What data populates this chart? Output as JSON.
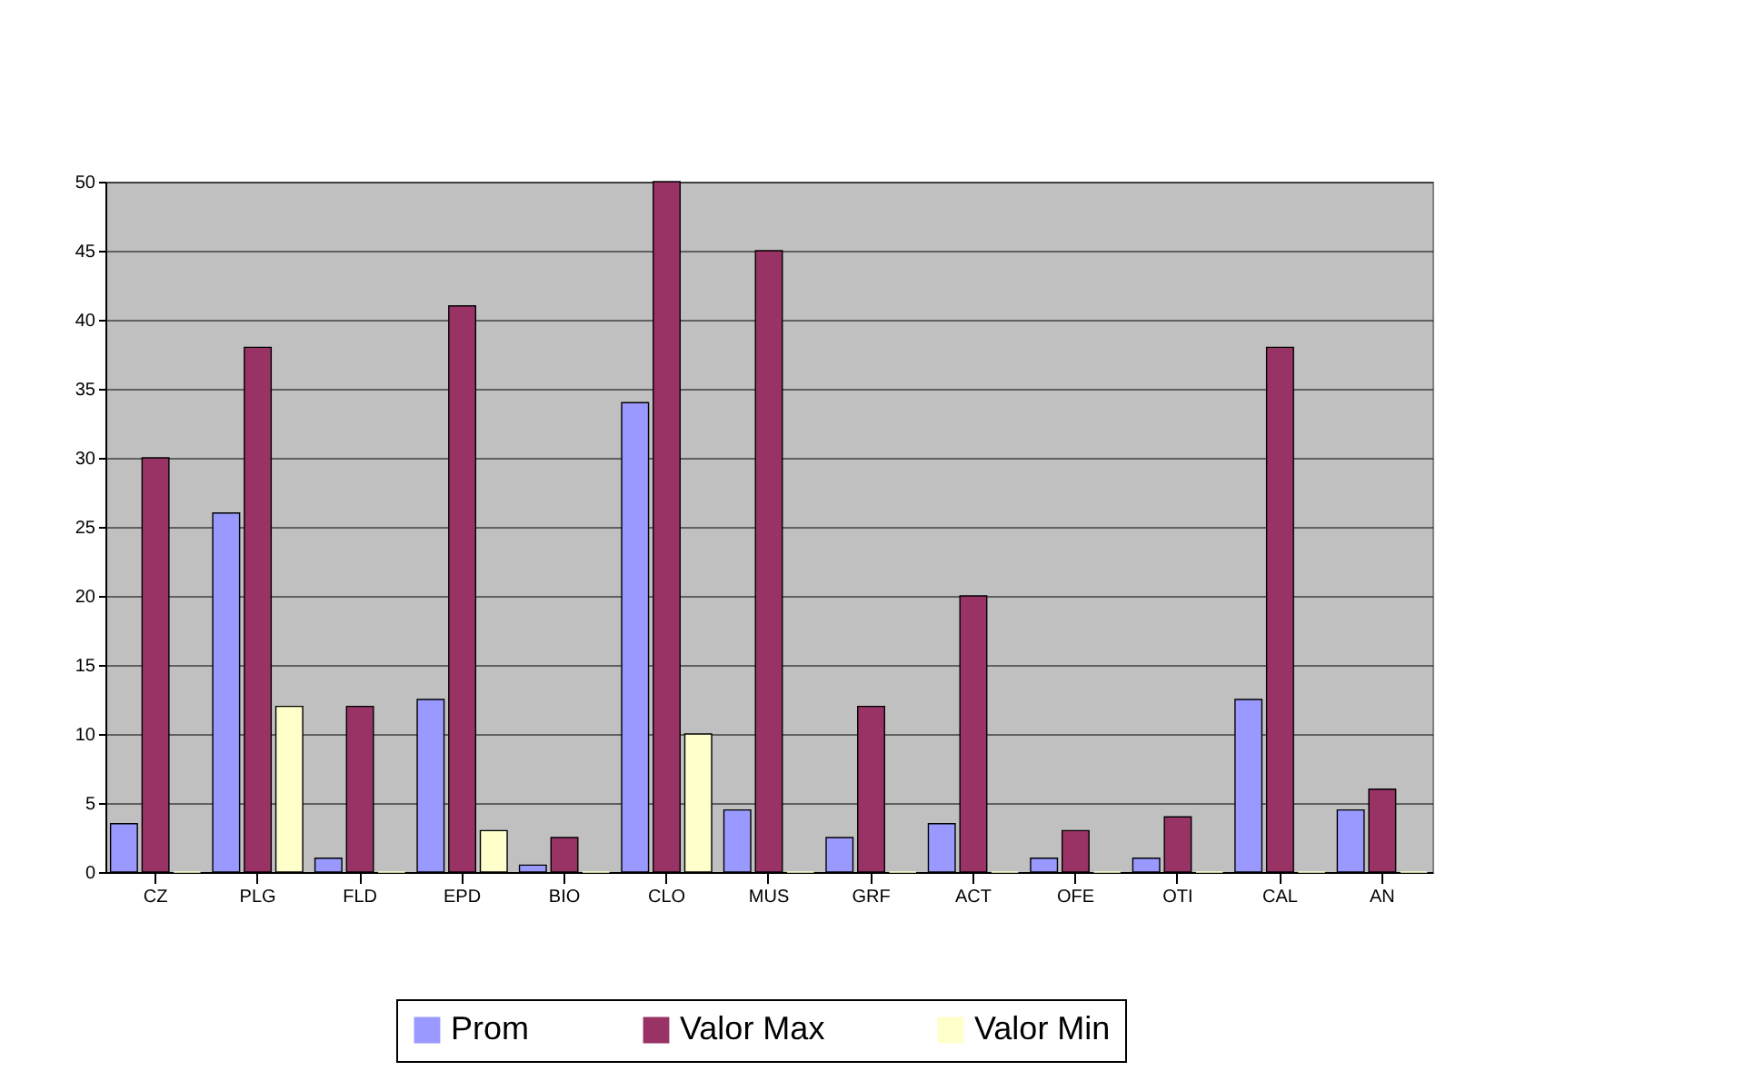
{
  "chart_data": {
    "type": "bar",
    "categories": [
      "CZ",
      "PLG",
      "FLD",
      "EPD",
      "BIO",
      "CLO",
      "MUS",
      "GRF",
      "ACT",
      "OFE",
      "OTI",
      "CAL",
      "AN"
    ],
    "series": [
      {
        "name": "Prom",
        "color": "#9999ff",
        "values": [
          3.5,
          26,
          1,
          12.5,
          0.5,
          34,
          4.5,
          2.5,
          3.5,
          1,
          1,
          12.5,
          4.5
        ]
      },
      {
        "name": "Valor Max",
        "color": "#993366",
        "values": [
          30,
          38,
          12,
          41,
          2.5,
          50,
          45,
          12,
          20,
          3,
          4,
          38,
          6
        ]
      },
      {
        "name": "Valor Min",
        "color": "#ffffcc",
        "values": [
          0,
          12,
          0,
          3,
          0,
          10,
          0,
          0,
          0,
          0,
          0,
          0,
          0
        ]
      }
    ],
    "ylim": [
      0,
      50
    ],
    "yticks": [
      0,
      5,
      10,
      15,
      20,
      25,
      30,
      35,
      40,
      45,
      50
    ],
    "grid": "y",
    "legend": "bottom"
  }
}
